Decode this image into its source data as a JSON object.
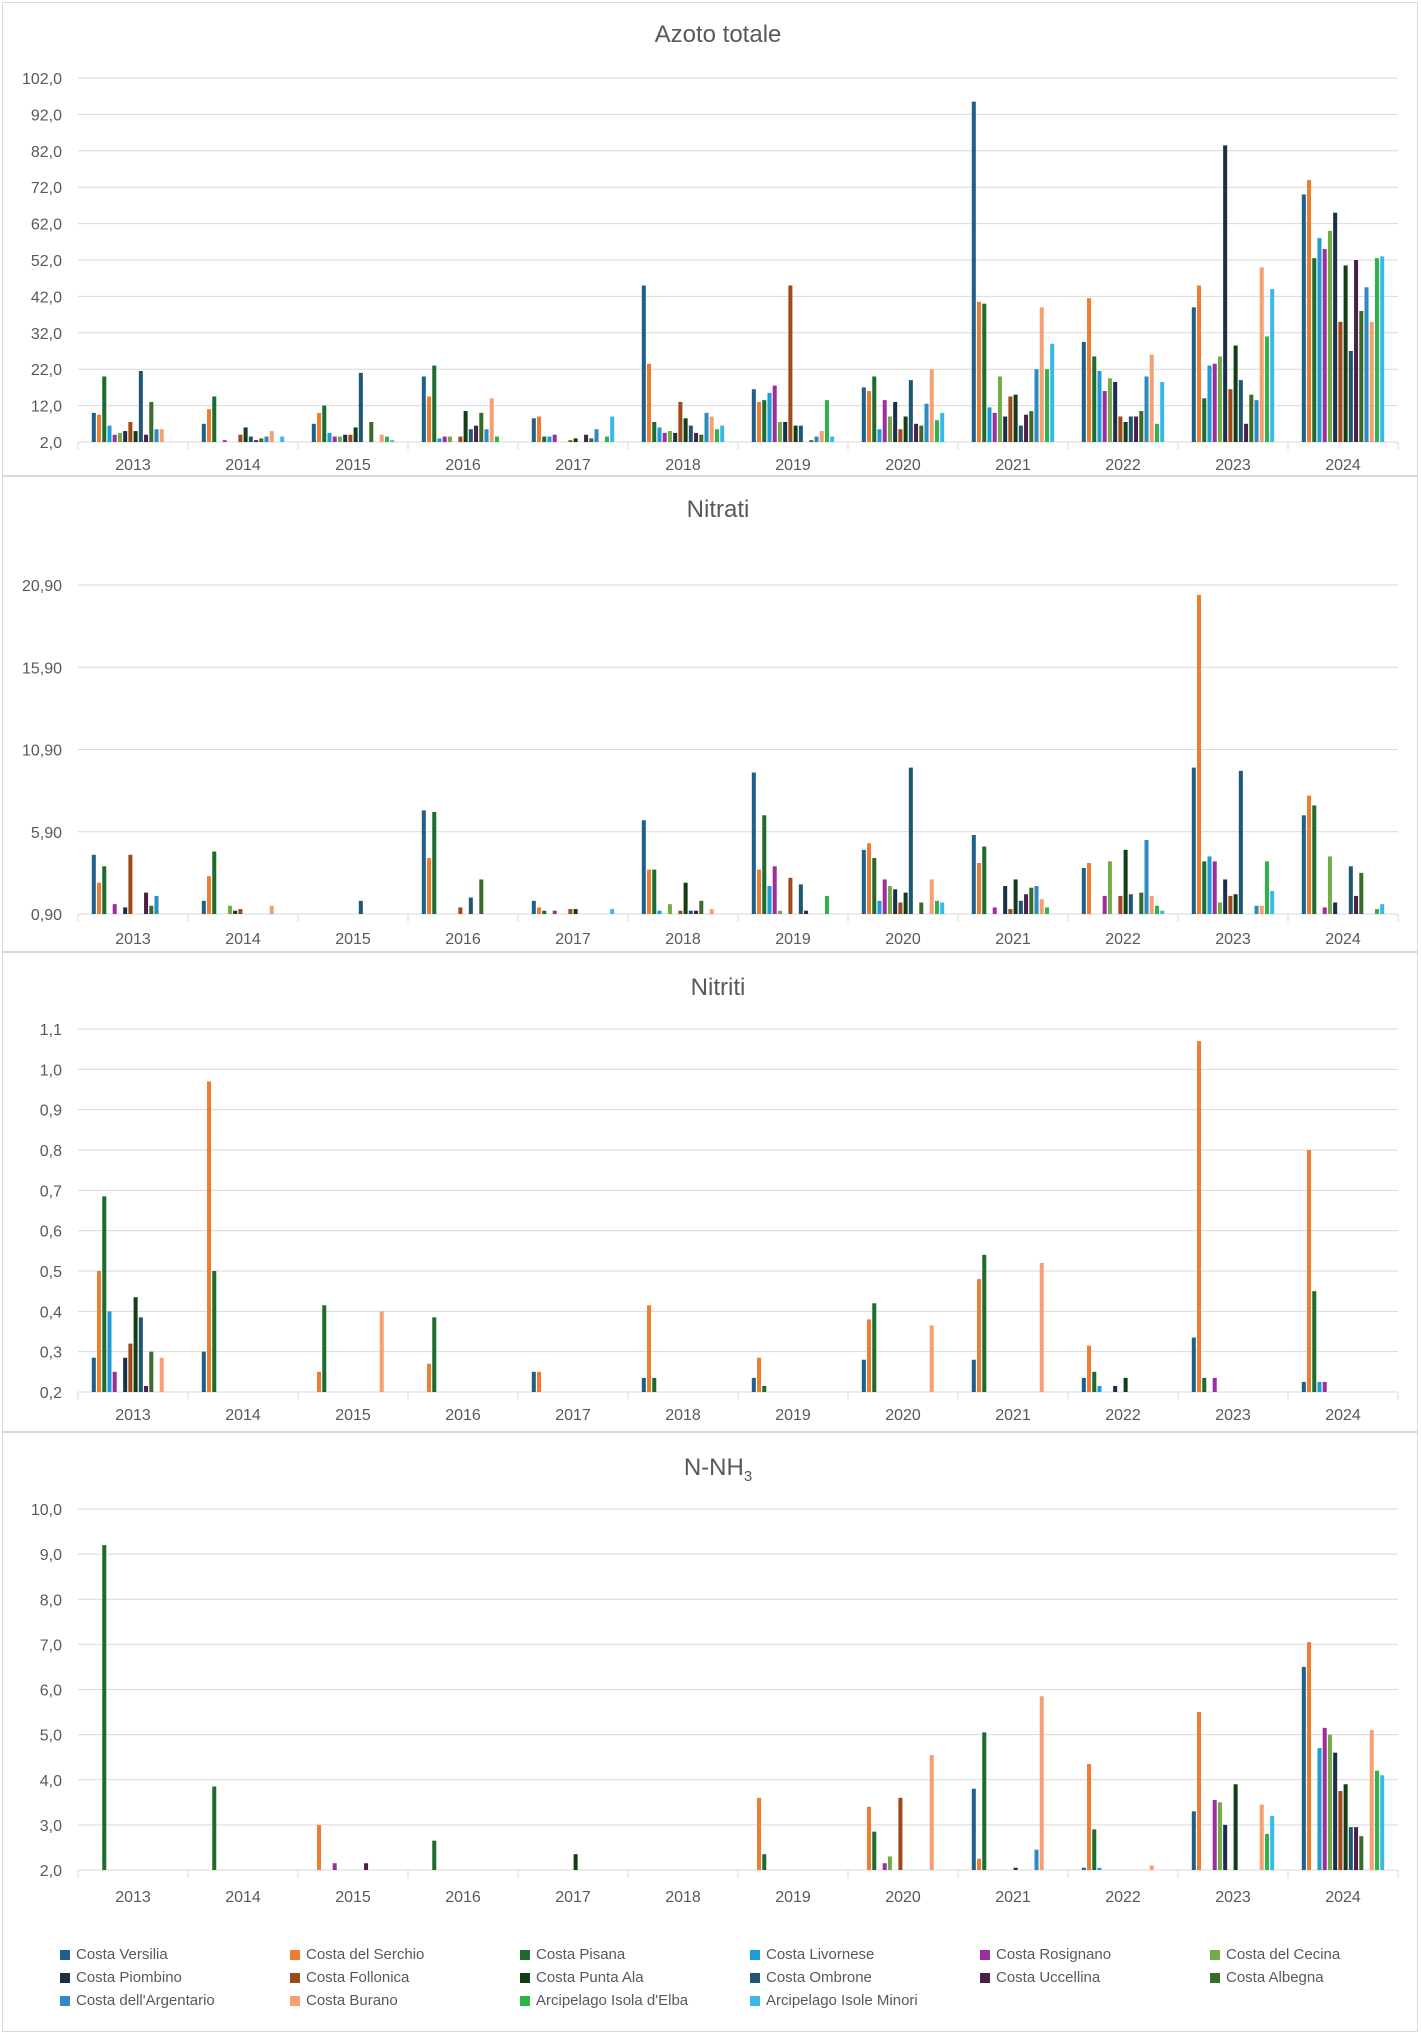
{
  "series_names": [
    "Costa Versilia",
    "Costa del Serchio",
    "Costa Pisana",
    "Costa Livornese",
    "Costa Rosignano",
    "Costa del Cecina",
    "Costa Piombino",
    "Costa Follonica",
    "Costa Punta Ala",
    "Costa Ombrone",
    "Costa Uccellina",
    "Costa Albegna",
    "Costa dell'Argentario",
    "Costa Burano",
    "Arcipelago Isola d'Elba",
    "Arcipelago Isole Minori"
  ],
  "series_colors": [
    "#1f5f8b",
    "#ed7d31",
    "#1e6b2e",
    "#1f9bd7",
    "#9b2f9b",
    "#70ad47",
    "#1b2f45",
    "#9c4a1a",
    "#153d15",
    "#1e5673",
    "#4a1f48",
    "#3b6b2a",
    "#2e8bc0",
    "#f4a073",
    "#2db34a",
    "#39b9ea"
  ],
  "chart_data": [
    {
      "type": "bar",
      "title": "Azoto totale",
      "categories": [
        "2013",
        "2014",
        "2015",
        "2016",
        "2017",
        "2018",
        "2019",
        "2020",
        "2021",
        "2022",
        "2023",
        "2024"
      ],
      "ylim": [
        2.0,
        102.0
      ],
      "yticks": [
        "2,0",
        "12,0",
        "22,0",
        "32,0",
        "42,0",
        "52,0",
        "62,0",
        "72,0",
        "82,0",
        "92,0",
        "102,0"
      ],
      "values": [
        [
          10,
          9.5,
          20,
          6.5,
          4,
          4.5,
          5,
          7.5,
          5,
          21.5,
          4,
          13,
          5.5,
          5.5,
          null,
          null
        ],
        [
          7,
          11,
          14.5,
          null,
          2.5,
          null,
          null,
          4,
          6,
          3.5,
          2.5,
          3,
          3.5,
          5,
          null,
          3.5
        ],
        [
          7,
          10,
          12,
          4.5,
          3.5,
          3.5,
          4,
          4,
          6,
          21,
          null,
          7.5,
          null,
          4,
          3.5,
          2.5
        ],
        [
          20,
          14.5,
          23,
          3,
          3.5,
          3.5,
          null,
          3.5,
          10.5,
          5.5,
          6.5,
          10,
          5.5,
          14,
          3.5,
          null
        ],
        [
          8.5,
          9,
          3.5,
          3.5,
          4,
          null,
          null,
          2.5,
          3,
          null,
          4,
          3,
          5.5,
          null,
          3.5,
          9
        ],
        [
          45,
          23.5,
          7.5,
          6,
          4.5,
          5,
          4.5,
          13,
          8.5,
          6.5,
          4.5,
          4,
          10,
          9,
          5.5,
          6.5
        ],
        [
          16.5,
          13,
          13.5,
          15.5,
          17.5,
          7.5,
          7.5,
          45,
          6.5,
          6.5,
          null,
          2.5,
          3.5,
          5,
          13.5,
          3.5
        ],
        [
          17,
          16,
          20,
          5.5,
          13.5,
          9,
          13,
          5.5,
          9,
          19,
          7,
          6.5,
          12.5,
          22,
          8,
          10
        ],
        [
          95.5,
          40.5,
          40,
          11.5,
          10,
          20,
          9,
          14.5,
          15,
          6.5,
          9.5,
          10.5,
          22,
          39,
          22,
          29
        ],
        [
          29.5,
          41.5,
          25.5,
          21.5,
          16,
          19.5,
          18.5,
          9,
          7.5,
          9,
          9,
          10.5,
          20,
          26,
          7,
          18.5
        ],
        [
          39,
          45,
          14,
          23,
          23.5,
          25.5,
          83.5,
          16.5,
          28.5,
          19,
          7,
          15,
          13.5,
          50,
          31,
          44
        ],
        [
          70,
          74,
          52.5,
          58,
          55,
          60,
          65,
          35,
          50.5,
          27,
          52,
          38,
          44.5,
          35,
          52.5,
          53
        ]
      ]
    },
    {
      "type": "bar",
      "title": "Nitrati",
      "categories": [
        "2013",
        "2014",
        "2015",
        "2016",
        "2017",
        "2018",
        "2019",
        "2020",
        "2021",
        "2022",
        "2023",
        "2024"
      ],
      "ylim": [
        0.9,
        20.9
      ],
      "yticks": [
        "0,90",
        "5,90",
        "10,90",
        "15,90",
        "20,90"
      ],
      "values": [
        [
          4.5,
          2.8,
          3.8,
          null,
          1.5,
          null,
          1.3,
          4.5,
          null,
          null,
          2.2,
          1.4,
          2,
          null,
          null,
          null
        ],
        [
          1.7,
          3.2,
          4.7,
          null,
          null,
          1.4,
          1.1,
          1.2,
          null,
          null,
          null,
          null,
          null,
          1.4,
          null,
          null
        ],
        [
          null,
          null,
          null,
          null,
          null,
          null,
          null,
          null,
          null,
          1.7,
          null,
          null,
          null,
          null,
          null,
          null
        ],
        [
          7.2,
          4.3,
          7.1,
          null,
          null,
          null,
          null,
          1.3,
          null,
          1.9,
          null,
          3,
          null,
          null,
          null,
          null
        ],
        [
          1.7,
          1.3,
          1.1,
          null,
          1.1,
          null,
          null,
          1.2,
          1.2,
          null,
          null,
          null,
          null,
          null,
          null,
          1.2
        ],
        [
          6.6,
          3.6,
          3.6,
          1.1,
          null,
          1.5,
          null,
          1.1,
          2.8,
          1.1,
          1.1,
          1.7,
          null,
          1.2,
          null,
          null
        ],
        [
          9.5,
          3.6,
          6.9,
          2.6,
          3.8,
          1.1,
          null,
          3.1,
          null,
          2.7,
          1.1,
          null,
          null,
          null,
          2,
          null
        ],
        [
          4.8,
          5.2,
          4.3,
          1.7,
          3,
          2.6,
          2.4,
          1.6,
          2.2,
          9.8,
          null,
          1.6,
          null,
          3,
          1.7,
          1.6
        ],
        [
          5.7,
          4,
          5,
          null,
          1.3,
          null,
          2.6,
          1.2,
          3,
          1.7,
          2.1,
          2.5,
          2.6,
          1.8,
          1.3,
          null
        ],
        [
          3.7,
          4,
          null,
          null,
          2,
          4.1,
          null,
          2,
          4.8,
          2.1,
          null,
          2.2,
          5.4,
          2,
          1.4,
          1.1
        ],
        [
          9.8,
          20.3,
          4.1,
          4.4,
          4.1,
          1.6,
          3,
          2,
          2.1,
          9.6,
          null,
          null,
          1.4,
          1.4,
          4.1,
          2.3
        ],
        [
          6.9,
          8.1,
          7.5,
          null,
          1.3,
          4.4,
          1.6,
          null,
          null,
          3.8,
          2,
          3.4,
          null,
          null,
          1.2,
          1.5
        ]
      ]
    },
    {
      "type": "bar",
      "title": "Nitriti",
      "categories": [
        "2013",
        "2014",
        "2015",
        "2016",
        "2017",
        "2018",
        "2019",
        "2020",
        "2021",
        "2022",
        "2023",
        "2024"
      ],
      "ylim": [
        0.2,
        1.1
      ],
      "yticks": [
        "0,2",
        "0,3",
        "0,4",
        "0,5",
        "0,6",
        "0,7",
        "0,8",
        "0,9",
        "1,0",
        "1,1"
      ],
      "values": [
        [
          0.285,
          0.5,
          0.685,
          0.4,
          0.25,
          null,
          0.285,
          0.32,
          0.435,
          0.385,
          0.215,
          0.3,
          null,
          0.285,
          null,
          null
        ],
        [
          0.3,
          0.97,
          0.5,
          null,
          null,
          null,
          null,
          null,
          null,
          null,
          null,
          null,
          null,
          null,
          null,
          null
        ],
        [
          null,
          0.25,
          0.415,
          null,
          null,
          null,
          null,
          null,
          null,
          null,
          null,
          null,
          null,
          0.4,
          null,
          null
        ],
        [
          null,
          0.27,
          0.385,
          null,
          null,
          null,
          null,
          null,
          null,
          null,
          null,
          null,
          null,
          null,
          null,
          null
        ],
        [
          0.25,
          0.25,
          null,
          null,
          null,
          null,
          null,
          null,
          null,
          null,
          null,
          null,
          null,
          null,
          null,
          null
        ],
        [
          0.235,
          0.415,
          0.235,
          null,
          null,
          null,
          null,
          null,
          null,
          null,
          null,
          null,
          null,
          null,
          null,
          null
        ],
        [
          0.235,
          0.285,
          0.215,
          null,
          null,
          null,
          null,
          null,
          null,
          null,
          null,
          null,
          null,
          null,
          null,
          null
        ],
        [
          0.28,
          0.38,
          0.42,
          null,
          null,
          null,
          null,
          null,
          null,
          null,
          null,
          null,
          null,
          0.365,
          null,
          null
        ],
        [
          0.28,
          0.48,
          0.54,
          null,
          null,
          null,
          null,
          null,
          null,
          null,
          null,
          null,
          null,
          0.52,
          null,
          null
        ],
        [
          0.235,
          0.315,
          0.25,
          0.215,
          null,
          null,
          0.215,
          null,
          0.235,
          null,
          null,
          null,
          null,
          null,
          null,
          null
        ],
        [
          0.335,
          1.07,
          0.235,
          null,
          0.235,
          null,
          null,
          null,
          null,
          null,
          null,
          null,
          null,
          null,
          null,
          null
        ],
        [
          0.225,
          0.8,
          0.45,
          0.225,
          0.225,
          null,
          null,
          null,
          null,
          null,
          null,
          null,
          null,
          null,
          null,
          null
        ]
      ]
    },
    {
      "type": "bar",
      "title": "N-NH",
      "title_subscript": "3",
      "categories": [
        "2013",
        "2014",
        "2015",
        "2016",
        "2017",
        "2018",
        "2019",
        "2020",
        "2021",
        "2022",
        "2023",
        "2024"
      ],
      "ylim": [
        2.0,
        10.0
      ],
      "yticks": [
        "2,0",
        "3,0",
        "4,0",
        "5,0",
        "6,0",
        "7,0",
        "8,0",
        "9,0",
        "10,0"
      ],
      "values": [
        [
          null,
          null,
          9.2,
          null,
          null,
          null,
          null,
          null,
          null,
          null,
          null,
          null,
          null,
          null,
          null,
          null
        ],
        [
          null,
          null,
          3.85,
          null,
          null,
          null,
          null,
          null,
          null,
          null,
          null,
          null,
          null,
          null,
          null,
          null
        ],
        [
          null,
          3,
          null,
          null,
          2.15,
          null,
          null,
          null,
          null,
          null,
          2.15,
          null,
          null,
          null,
          null,
          null
        ],
        [
          null,
          null,
          2.65,
          null,
          null,
          null,
          null,
          null,
          null,
          null,
          null,
          null,
          null,
          null,
          null,
          null
        ],
        [
          null,
          null,
          null,
          null,
          null,
          null,
          null,
          null,
          2.35,
          null,
          null,
          null,
          null,
          null,
          null,
          null
        ],
        [
          null,
          null,
          null,
          null,
          null,
          null,
          null,
          null,
          null,
          null,
          null,
          null,
          null,
          null,
          null,
          null
        ],
        [
          null,
          3.6,
          2.35,
          null,
          null,
          null,
          null,
          null,
          null,
          null,
          null,
          null,
          null,
          null,
          null,
          null
        ],
        [
          null,
          3.4,
          2.85,
          null,
          2.15,
          2.3,
          null,
          3.6,
          null,
          null,
          null,
          null,
          null,
          4.55,
          null,
          null
        ],
        [
          3.8,
          2.25,
          5.05,
          null,
          null,
          null,
          null,
          null,
          2.05,
          null,
          null,
          null,
          2.45,
          5.85,
          null,
          null
        ],
        [
          2.05,
          4.35,
          2.9,
          2.05,
          null,
          null,
          null,
          null,
          null,
          null,
          null,
          null,
          null,
          2.1,
          null,
          null
        ],
        [
          3.3,
          5.5,
          null,
          null,
          3.55,
          3.5,
          3,
          null,
          3.9,
          null,
          null,
          null,
          null,
          3.45,
          2.8,
          3.2
        ],
        [
          6.5,
          7.05,
          null,
          4.7,
          5.15,
          5,
          4.6,
          3.75,
          3.9,
          2.95,
          2.95,
          2.75,
          null,
          5.1,
          4.2,
          4.1
        ]
      ]
    }
  ]
}
